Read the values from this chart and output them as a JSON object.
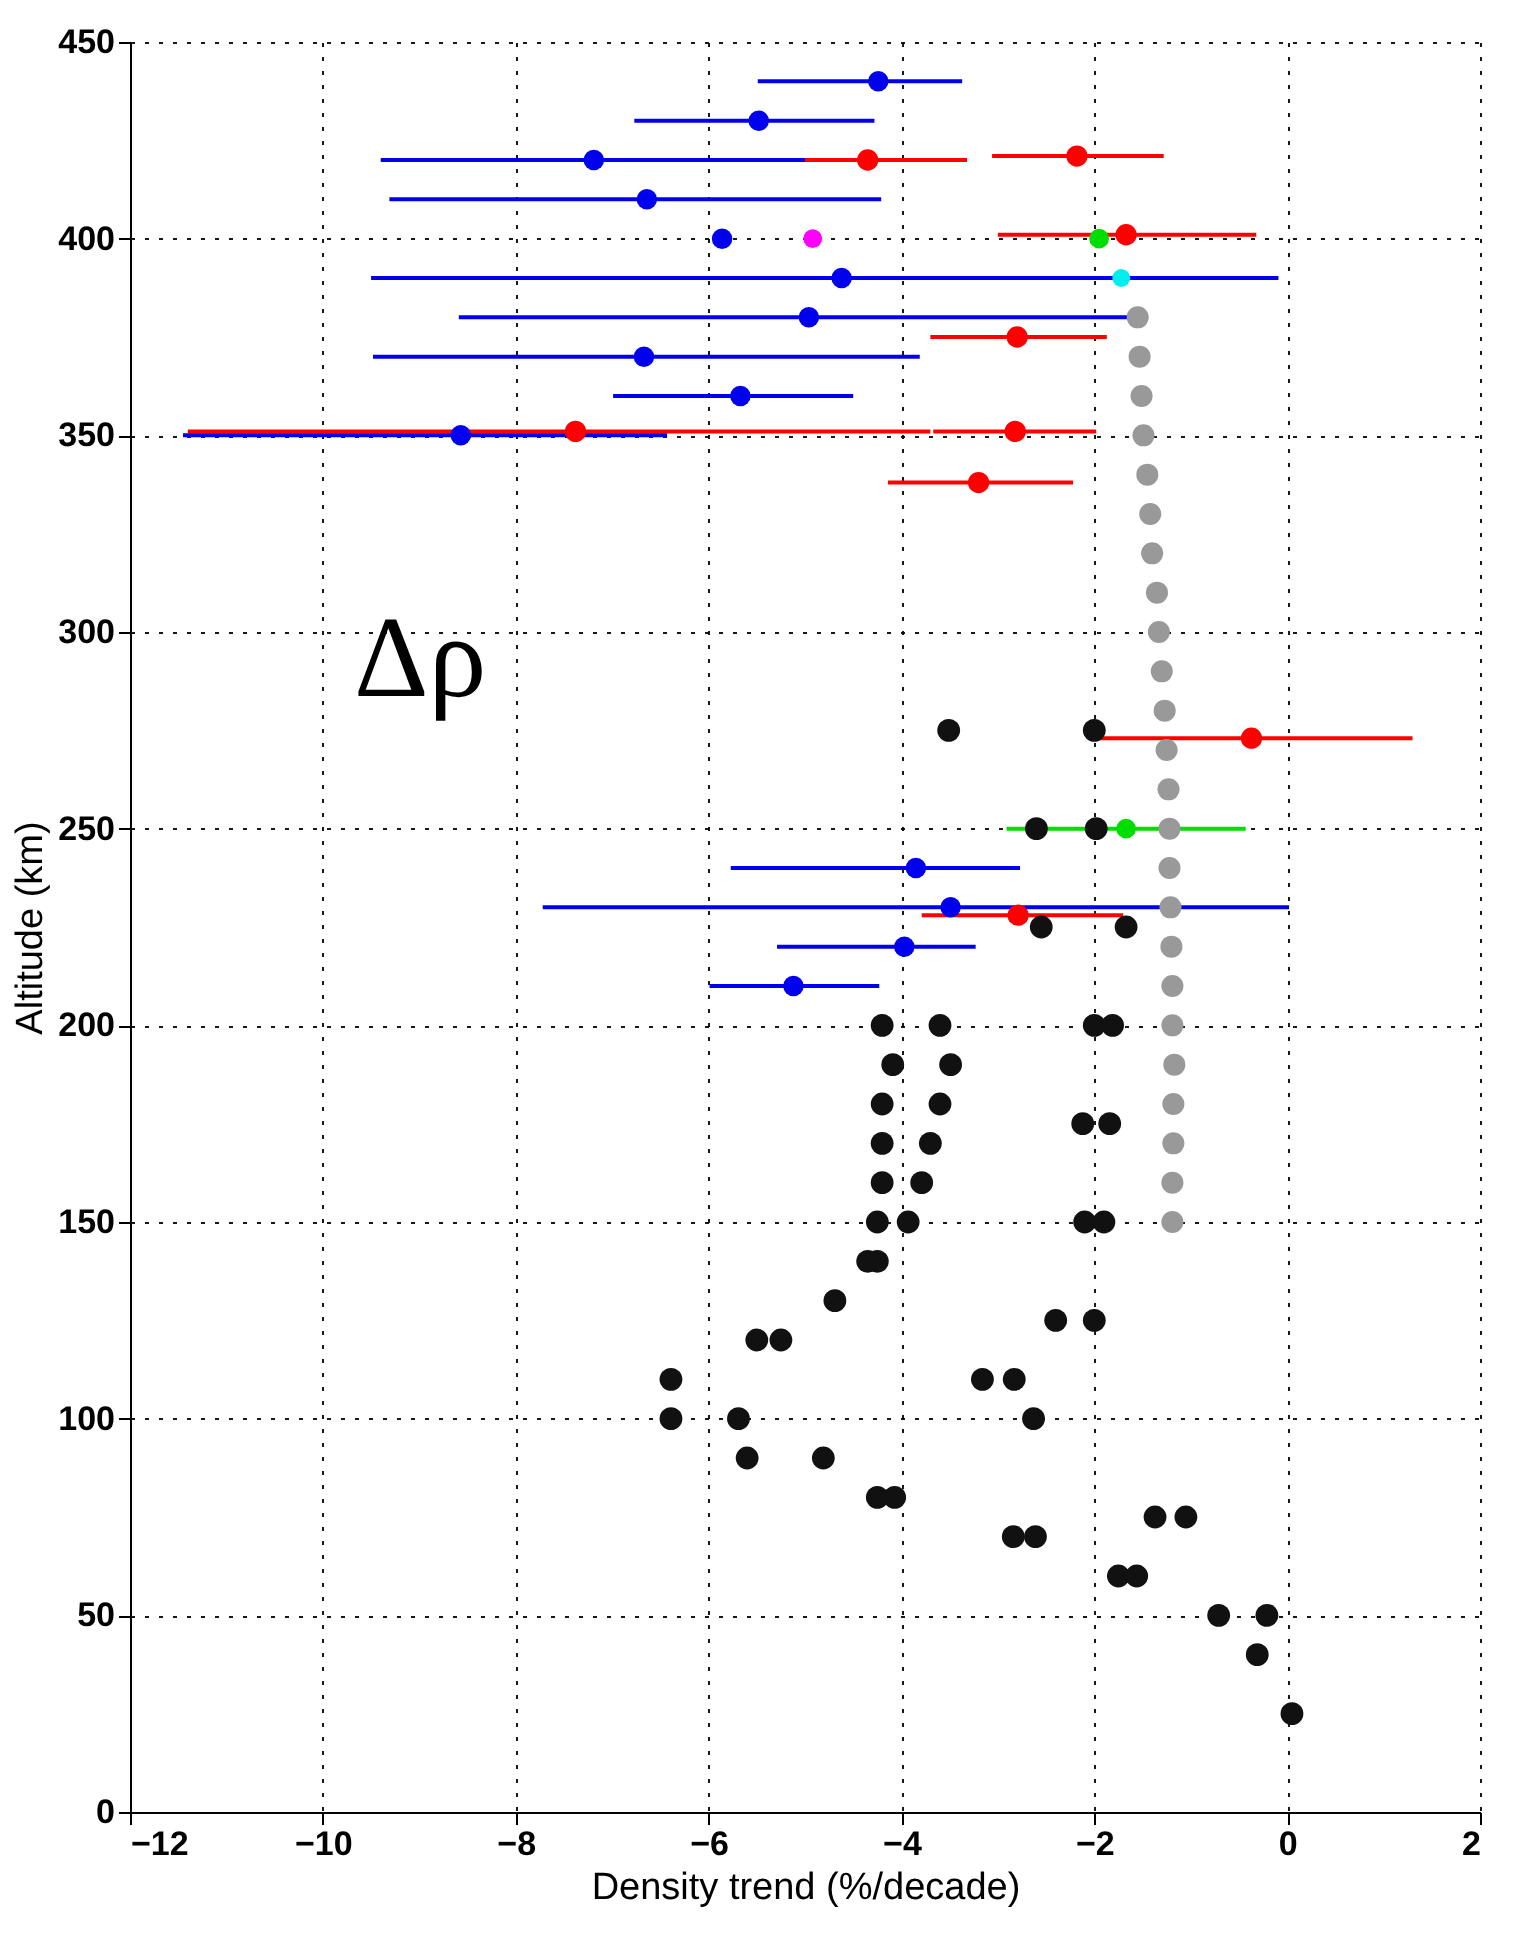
{
  "chart_data": {
    "type": "scatter",
    "xlabel": "Density trend (%/decade)",
    "ylabel": "Altitude (km)",
    "xlim": [
      -12,
      2
    ],
    "xticks": [
      -12,
      -10,
      -8,
      -6,
      -4,
      -2,
      0,
      2
    ],
    "ylim": [
      0,
      450
    ],
    "yticks": [
      0,
      50,
      100,
      150,
      200,
      250,
      300,
      350,
      400,
      450
    ],
    "grid": true,
    "marker": "circle",
    "annotations": [
      "Δρ"
    ],
    "series": [
      {
        "color": "#111111",
        "x": [
          -3.51,
          -2.0,
          -2.6,
          -1.98,
          -2.55,
          -1.67,
          -4.2,
          -3.6,
          -2.0,
          -1.81,
          -4.09,
          -3.49,
          -4.2,
          -3.6,
          -4.2,
          -3.7,
          -2.12,
          -1.84,
          -4.2,
          -3.79,
          -4.25,
          -3.93,
          -2.1,
          -1.9,
          -4.35,
          -4.25,
          -4.69,
          -5.5,
          -5.25,
          -2.4,
          -2.0,
          -6.39,
          -6.39,
          -3.16,
          -2.83,
          -2.63,
          -5.69,
          -5.6,
          -4.81,
          -4.25,
          -4.07,
          -2.84,
          -2.61,
          -1.37,
          -1.05,
          -1.75,
          -1.56,
          -0.71,
          -0.21,
          -0.31,
          0.05
        ],
        "values": [
          275,
          275,
          250,
          250,
          225,
          225,
          200,
          200,
          200,
          200,
          190,
          190,
          180,
          180,
          170,
          170,
          175,
          175,
          160,
          160,
          150,
          150,
          150,
          150,
          140,
          140,
          130,
          120,
          120,
          125,
          125,
          110,
          100,
          110,
          110,
          100,
          100,
          90,
          90,
          80,
          80,
          70,
          70,
          75,
          75,
          60,
          60,
          50,
          50,
          40,
          25
        ]
      },
      {
        "color": "#999999",
        "x": [
          -1.55,
          -1.53,
          -1.51,
          -1.49,
          -1.45,
          -1.42,
          -1.4,
          -1.35,
          -1.33,
          -1.3,
          -1.27,
          -1.25,
          -1.23,
          -1.22,
          -1.22,
          -1.21,
          -1.2,
          -1.19,
          -1.19,
          -1.17,
          -1.18,
          -1.18,
          -1.19,
          -1.19
        ],
        "values": [
          380,
          370,
          360,
          350,
          340,
          330,
          320,
          310,
          300,
          290,
          280,
          270,
          260,
          250,
          240,
          230,
          220,
          210,
          200,
          190,
          180,
          170,
          160,
          150
        ]
      },
      {
        "color": "#ff0000",
        "x": [
          -4.35,
          -2.18,
          -1.67,
          -2.8,
          -7.38,
          -2.82,
          -3.2,
          -0.37,
          -2.79
        ],
        "values": [
          420,
          421,
          401,
          375,
          351,
          351,
          338,
          273,
          228
        ],
        "xerrors": [
          [
            -5.32,
            -3.32
          ],
          [
            -3.06,
            -1.28
          ],
          [
            -3.0,
            -0.32
          ],
          [
            -3.7,
            -1.87
          ],
          [
            -11.4,
            -3.7
          ],
          [
            -3.67,
            -1.98
          ],
          [
            -4.14,
            -2.22
          ],
          [
            -2.0,
            1.3
          ],
          [
            -3.79,
            -1.7
          ]
        ]
      },
      {
        "color": "#0000ee",
        "x": [
          -4.24,
          -5.48,
          -7.19,
          -6.64,
          -5.86,
          -4.62,
          -4.96,
          -6.67,
          -5.67,
          -8.57,
          -3.85,
          -3.49,
          -3.97,
          -5.12
        ],
        "values": [
          440,
          430,
          420,
          410,
          400,
          390,
          380,
          370,
          360,
          350,
          240,
          230,
          220,
          210
        ],
        "xerrors": [
          [
            -5.49,
            -3.37
          ],
          [
            -6.77,
            -4.28
          ],
          [
            -9.4,
            -5.0
          ],
          [
            -9.31,
            -4.21
          ],
          null,
          [
            -9.5,
            -0.09
          ],
          [
            -8.59,
            -1.47
          ],
          [
            -9.48,
            -3.81
          ],
          [
            -6.99,
            -4.5
          ],
          [
            -11.45,
            -6.43
          ],
          [
            -5.77,
            -2.77
          ],
          [
            -7.72,
            0.02
          ],
          [
            -5.29,
            -3.23
          ],
          [
            -5.99,
            -4.23
          ]
        ]
      },
      {
        "color": "#00dd00",
        "x": [
          -1.95,
          -1.67
        ],
        "values": [
          400,
          250
        ],
        "xerrors": [
          null,
          [
            -2.91,
            -0.43
          ]
        ]
      },
      {
        "color": "#ff00ff",
        "x": [
          -4.92
        ],
        "values": [
          400
        ]
      },
      {
        "color": "#00eeee",
        "x": [
          -1.72
        ],
        "values": [
          390
        ]
      }
    ]
  }
}
